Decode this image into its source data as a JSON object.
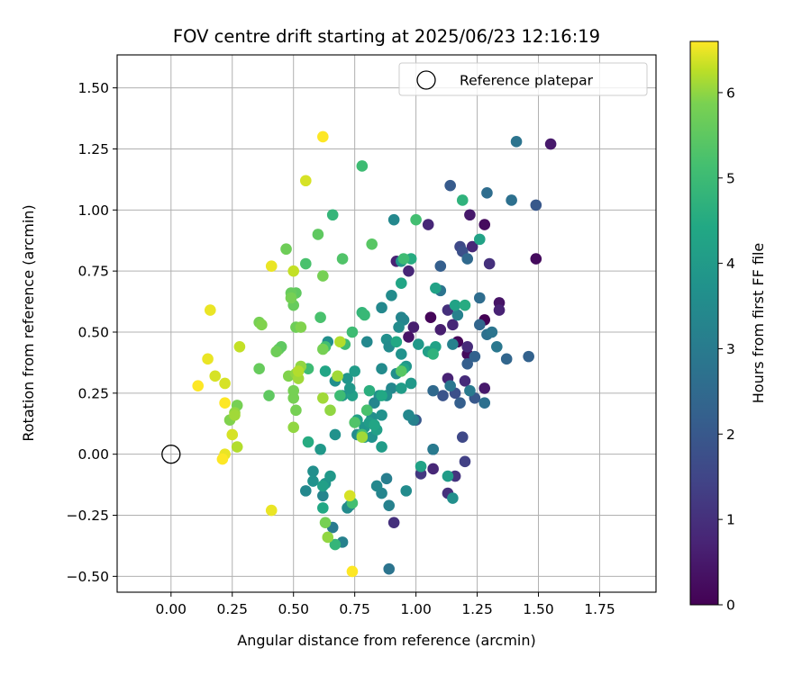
{
  "chart_data": {
    "type": "scatter",
    "title": "FOV centre drift starting at 2025/06/23 12:16:19",
    "xlabel": "Angular distance from reference (arcmin)",
    "ylabel": "Rotation from reference (arcmin)",
    "xlim": [
      -0.22,
      1.98
    ],
    "ylim": [
      -0.565,
      1.635
    ],
    "xticks": [
      0.0,
      0.25,
      0.5,
      0.75,
      1.0,
      1.25,
      1.5,
      1.75
    ],
    "xtick_labels": [
      "0.00",
      "0.25",
      "0.50",
      "0.75",
      "1.00",
      "1.25",
      "1.50",
      "1.75"
    ],
    "yticks": [
      -0.5,
      -0.25,
      0.0,
      0.25,
      0.5,
      0.75,
      1.0,
      1.25,
      1.5
    ],
    "ytick_labels": [
      "−0.50",
      "−0.25",
      "0.00",
      "0.25",
      "0.50",
      "0.75",
      "1.00",
      "1.25",
      "1.50"
    ],
    "grid": true,
    "legend": {
      "placement": "top-right",
      "entries": [
        "Reference platepar"
      ]
    },
    "reference_point": {
      "x": 0.0,
      "y": 0.0,
      "label": "Reference platepar"
    },
    "colorbar": {
      "label": "Hours from first FF file",
      "colormap": "viridis",
      "range": [
        0,
        6.6
      ],
      "ticks": [
        0,
        1,
        2,
        3,
        4,
        5,
        6
      ],
      "tick_labels": [
        "0",
        "1",
        "2",
        "3",
        "4",
        "5",
        "6"
      ]
    },
    "points": [
      {
        "x": 1.55,
        "y": 1.27,
        "h": 0.5
      },
      {
        "x": 1.49,
        "y": 0.8,
        "h": 0.2
      },
      {
        "x": 1.28,
        "y": 0.94,
        "h": 0.2
      },
      {
        "x": 1.28,
        "y": 0.55,
        "h": 0.0
      },
      {
        "x": 1.06,
        "y": 0.56,
        "h": 0.1
      },
      {
        "x": 1.21,
        "y": 0.41,
        "h": 0.2
      },
      {
        "x": 1.17,
        "y": 0.46,
        "h": 0.1
      },
      {
        "x": 1.28,
        "y": 0.27,
        "h": 0.5
      },
      {
        "x": 1.22,
        "y": 0.98,
        "h": 0.5
      },
      {
        "x": 1.23,
        "y": 0.85,
        "h": 0.8
      },
      {
        "x": 1.3,
        "y": 0.78,
        "h": 1.0
      },
      {
        "x": 1.34,
        "y": 0.62,
        "h": 0.4
      },
      {
        "x": 1.34,
        "y": 0.59,
        "h": 0.7
      },
      {
        "x": 0.97,
        "y": 0.75,
        "h": 0.8
      },
      {
        "x": 0.92,
        "y": 0.79,
        "h": 0.7
      },
      {
        "x": 1.05,
        "y": 0.94,
        "h": 0.8
      },
      {
        "x": 0.99,
        "y": 0.52,
        "h": 0.6
      },
      {
        "x": 0.97,
        "y": 0.48,
        "h": 0.4
      },
      {
        "x": 1.1,
        "y": 0.51,
        "h": 0.6
      },
      {
        "x": 1.15,
        "y": 0.53,
        "h": 0.8
      },
      {
        "x": 1.13,
        "y": 0.59,
        "h": 1.0
      },
      {
        "x": 1.21,
        "y": 0.44,
        "h": 0.9
      },
      {
        "x": 1.13,
        "y": 0.31,
        "h": 0.7
      },
      {
        "x": 1.2,
        "y": 0.3,
        "h": 0.9
      },
      {
        "x": 1.13,
        "y": -0.16,
        "h": 1.0
      },
      {
        "x": 1.16,
        "y": -0.09,
        "h": 1.1
      },
      {
        "x": 1.07,
        "y": -0.06,
        "h": 0.8
      },
      {
        "x": 0.91,
        "y": -0.28,
        "h": 1.0
      },
      {
        "x": 1.02,
        "y": -0.08,
        "h": 1.2
      },
      {
        "x": 1.2,
        "y": -0.03,
        "h": 1.4
      },
      {
        "x": 1.19,
        "y": 0.07,
        "h": 1.6
      },
      {
        "x": 1.07,
        "y": 0.02,
        "h": 1.8
      },
      {
        "x": 1.49,
        "y": 1.02,
        "h": 2.0
      },
      {
        "x": 1.18,
        "y": 0.85,
        "h": 1.6
      },
      {
        "x": 1.19,
        "y": 0.83,
        "h": 1.8
      },
      {
        "x": 1.14,
        "y": 1.1,
        "h": 2.1
      },
      {
        "x": 1.1,
        "y": 0.77,
        "h": 2.2
      },
      {
        "x": 1.21,
        "y": 0.8,
        "h": 2.5
      },
      {
        "x": 1.29,
        "y": 1.07,
        "h": 2.6
      },
      {
        "x": 1.41,
        "y": 1.28,
        "h": 2.8
      },
      {
        "x": 1.39,
        "y": 1.04,
        "h": 2.7
      },
      {
        "x": 1.46,
        "y": 0.4,
        "h": 2.3
      },
      {
        "x": 1.37,
        "y": 0.39,
        "h": 2.4
      },
      {
        "x": 1.21,
        "y": 0.37,
        "h": 2.2
      },
      {
        "x": 1.24,
        "y": 0.4,
        "h": 2.3
      },
      {
        "x": 1.18,
        "y": 0.21,
        "h": 2.2
      },
      {
        "x": 1.24,
        "y": 0.23,
        "h": 2.0
      },
      {
        "x": 1.16,
        "y": 0.25,
        "h": 1.8
      },
      {
        "x": 1.11,
        "y": 0.24,
        "h": 1.9
      },
      {
        "x": 1.0,
        "y": 0.14,
        "h": 2.0
      },
      {
        "x": 1.07,
        "y": 0.26,
        "h": 2.5
      },
      {
        "x": 1.26,
        "y": 0.53,
        "h": 2.4
      },
      {
        "x": 1.26,
        "y": 0.64,
        "h": 2.6
      },
      {
        "x": 1.29,
        "y": 0.49,
        "h": 2.7
      },
      {
        "x": 1.33,
        "y": 0.44,
        "h": 2.9
      },
      {
        "x": 1.31,
        "y": 0.5,
        "h": 2.8
      },
      {
        "x": 1.28,
        "y": 0.21,
        "h": 2.7
      },
      {
        "x": 1.22,
        "y": 0.26,
        "h": 3.0
      },
      {
        "x": 1.14,
        "y": 0.28,
        "h": 2.9
      },
      {
        "x": 1.1,
        "y": 0.67,
        "h": 2.8
      },
      {
        "x": 1.17,
        "y": 0.57,
        "h": 3.2
      },
      {
        "x": 1.15,
        "y": 0.45,
        "h": 3.2
      },
      {
        "x": 1.07,
        "y": 0.02,
        "h": 3.0
      },
      {
        "x": 0.99,
        "y": 0.14,
        "h": 3.2
      },
      {
        "x": 0.97,
        "y": 0.16,
        "h": 3.4
      },
      {
        "x": 0.89,
        "y": -0.47,
        "h": 2.8
      },
      {
        "x": 0.89,
        "y": -0.21,
        "h": 3.2
      },
      {
        "x": 0.88,
        "y": -0.1,
        "h": 3.1
      },
      {
        "x": 0.86,
        "y": -0.16,
        "h": 3.3
      },
      {
        "x": 0.84,
        "y": -0.13,
        "h": 3.4
      },
      {
        "x": 0.96,
        "y": -0.15,
        "h": 3.5
      },
      {
        "x": 0.7,
        "y": -0.36,
        "h": 3.2
      },
      {
        "x": 0.66,
        "y": -0.3,
        "h": 3.0
      },
      {
        "x": 0.73,
        "y": -0.21,
        "h": 3.3
      },
      {
        "x": 0.72,
        "y": -0.22,
        "h": 3.5
      },
      {
        "x": 0.62,
        "y": -0.17,
        "h": 3.3
      },
      {
        "x": 0.58,
        "y": -0.07,
        "h": 3.6
      },
      {
        "x": 0.55,
        "y": -0.15,
        "h": 3.4
      },
      {
        "x": 0.58,
        "y": -0.11,
        "h": 3.7
      },
      {
        "x": 0.63,
        "y": -0.12,
        "h": 3.8
      },
      {
        "x": 0.65,
        "y": -0.09,
        "h": 3.9
      },
      {
        "x": 1.15,
        "y": -0.18,
        "h": 3.6
      },
      {
        "x": 1.13,
        "y": -0.09,
        "h": 4.0
      },
      {
        "x": 1.02,
        "y": -0.05,
        "h": 4.2
      },
      {
        "x": 0.91,
        "y": 0.96,
        "h": 3.4
      },
      {
        "x": 0.94,
        "y": 0.79,
        "h": 3.8
      },
      {
        "x": 0.9,
        "y": 0.65,
        "h": 3.5
      },
      {
        "x": 0.86,
        "y": 0.6,
        "h": 3.4
      },
      {
        "x": 0.95,
        "y": 0.55,
        "h": 3.3
      },
      {
        "x": 0.94,
        "y": 0.56,
        "h": 3.3
      },
      {
        "x": 0.93,
        "y": 0.52,
        "h": 3.5
      },
      {
        "x": 0.88,
        "y": 0.47,
        "h": 3.6
      },
      {
        "x": 0.89,
        "y": 0.44,
        "h": 3.5
      },
      {
        "x": 0.8,
        "y": 0.46,
        "h": 3.4
      },
      {
        "x": 0.94,
        "y": 0.41,
        "h": 3.7
      },
      {
        "x": 0.96,
        "y": 0.36,
        "h": 3.8
      },
      {
        "x": 0.92,
        "y": 0.33,
        "h": 3.6
      },
      {
        "x": 0.86,
        "y": 0.35,
        "h": 3.5
      },
      {
        "x": 0.9,
        "y": 0.27,
        "h": 3.4
      },
      {
        "x": 0.85,
        "y": 0.24,
        "h": 3.6
      },
      {
        "x": 0.88,
        "y": 0.24,
        "h": 3.6
      },
      {
        "x": 0.83,
        "y": 0.21,
        "h": 3.3
      },
      {
        "x": 0.8,
        "y": 0.18,
        "h": 3.4
      },
      {
        "x": 0.82,
        "y": 0.15,
        "h": 3.6
      },
      {
        "x": 0.86,
        "y": 0.16,
        "h": 3.7
      },
      {
        "x": 0.79,
        "y": 0.11,
        "h": 3.8
      },
      {
        "x": 0.76,
        "y": 0.08,
        "h": 3.5
      },
      {
        "x": 0.79,
        "y": 0.07,
        "h": 3.9
      },
      {
        "x": 0.82,
        "y": 0.07,
        "h": 3.7
      },
      {
        "x": 0.86,
        "y": 0.03,
        "h": 4.0
      },
      {
        "x": 0.67,
        "y": 0.08,
        "h": 3.7
      },
      {
        "x": 0.61,
        "y": 0.02,
        "h": 3.9
      },
      {
        "x": 0.64,
        "y": 0.46,
        "h": 3.6
      },
      {
        "x": 0.67,
        "y": 0.3,
        "h": 3.6
      },
      {
        "x": 0.7,
        "y": 0.24,
        "h": 3.8
      },
      {
        "x": 0.72,
        "y": 0.31,
        "h": 3.8
      },
      {
        "x": 0.75,
        "y": 0.34,
        "h": 4.0
      },
      {
        "x": 0.74,
        "y": 0.24,
        "h": 4.1
      },
      {
        "x": 0.73,
        "y": 0.27,
        "h": 3.9
      },
      {
        "x": 0.76,
        "y": 0.14,
        "h": 4.1
      },
      {
        "x": 0.81,
        "y": 0.13,
        "h": 4.0
      },
      {
        "x": 0.84,
        "y": 0.1,
        "h": 4.1
      },
      {
        "x": 0.94,
        "y": 0.27,
        "h": 4.0
      },
      {
        "x": 0.98,
        "y": 0.29,
        "h": 3.9
      },
      {
        "x": 1.01,
        "y": 0.45,
        "h": 3.9
      },
      {
        "x": 1.05,
        "y": 0.42,
        "h": 4.1
      },
      {
        "x": 1.08,
        "y": 0.44,
        "h": 4.2
      },
      {
        "x": 1.08,
        "y": 0.68,
        "h": 4.2
      },
      {
        "x": 1.16,
        "y": 0.61,
        "h": 4.2
      },
      {
        "x": 1.26,
        "y": 0.88,
        "h": 4.2
      },
      {
        "x": 0.94,
        "y": 0.7,
        "h": 4.3
      },
      {
        "x": 0.92,
        "y": 0.46,
        "h": 4.4
      },
      {
        "x": 0.95,
        "y": 0.35,
        "h": 4.3
      },
      {
        "x": 0.86,
        "y": 0.24,
        "h": 4.4
      },
      {
        "x": 0.83,
        "y": 0.12,
        "h": 4.3
      },
      {
        "x": 0.98,
        "y": 0.8,
        "h": 4.5
      },
      {
        "x": 0.81,
        "y": 0.26,
        "h": 4.6
      },
      {
        "x": 1.2,
        "y": 0.61,
        "h": 4.5
      },
      {
        "x": 1.19,
        "y": 1.04,
        "h": 4.7
      },
      {
        "x": 1.07,
        "y": 0.41,
        "h": 4.7
      },
      {
        "x": 0.63,
        "y": 0.34,
        "h": 4.3
      },
      {
        "x": 0.62,
        "y": -0.22,
        "h": 4.4
      },
      {
        "x": 0.62,
        "y": -0.13,
        "h": 4.1
      },
      {
        "x": 0.56,
        "y": 0.05,
        "h": 4.5
      },
      {
        "x": 0.66,
        "y": 0.98,
        "h": 4.8
      },
      {
        "x": 0.78,
        "y": 1.18,
        "h": 5.0
      },
      {
        "x": 1.0,
        "y": 0.96,
        "h": 5.1
      },
      {
        "x": 0.95,
        "y": 0.8,
        "h": 5.0
      },
      {
        "x": 0.78,
        "y": 0.58,
        "h": 4.8
      },
      {
        "x": 0.79,
        "y": 0.57,
        "h": 4.9
      },
      {
        "x": 0.74,
        "y": 0.5,
        "h": 5.0
      },
      {
        "x": 0.71,
        "y": 0.45,
        "h": 5.0
      },
      {
        "x": 0.69,
        "y": 0.24,
        "h": 5.0
      },
      {
        "x": 0.63,
        "y": 0.44,
        "h": 5.1
      },
      {
        "x": 0.56,
        "y": 0.35,
        "h": 5.0
      },
      {
        "x": 0.61,
        "y": 0.56,
        "h": 5.2
      },
      {
        "x": 0.55,
        "y": 0.78,
        "h": 5.2
      },
      {
        "x": 0.7,
        "y": 0.8,
        "h": 5.3
      },
      {
        "x": 0.82,
        "y": 0.86,
        "h": 5.4
      },
      {
        "x": 0.67,
        "y": -0.37,
        "h": 4.8
      },
      {
        "x": 0.74,
        "y": -0.2,
        "h": 5.1
      },
      {
        "x": 0.78,
        "y": 0.08,
        "h": 5.1
      },
      {
        "x": 0.8,
        "y": 0.18,
        "h": 5.2
      },
      {
        "x": 0.75,
        "y": 0.13,
        "h": 5.3
      },
      {
        "x": 0.94,
        "y": 0.34,
        "h": 5.4
      },
      {
        "x": 0.6,
        "y": 0.9,
        "h": 5.5
      },
      {
        "x": 0.51,
        "y": 0.66,
        "h": 5.5
      },
      {
        "x": 0.49,
        "y": 0.66,
        "h": 5.6
      },
      {
        "x": 0.47,
        "y": 0.84,
        "h": 5.7
      },
      {
        "x": 0.5,
        "y": 0.61,
        "h": 5.6
      },
      {
        "x": 0.49,
        "y": 0.64,
        "h": 5.8
      },
      {
        "x": 0.51,
        "y": 0.52,
        "h": 5.7
      },
      {
        "x": 0.53,
        "y": 0.52,
        "h": 5.9
      },
      {
        "x": 0.62,
        "y": 0.73,
        "h": 5.8
      },
      {
        "x": 0.62,
        "y": 0.43,
        "h": 5.8
      },
      {
        "x": 0.44,
        "y": 0.43,
        "h": 5.6
      },
      {
        "x": 0.45,
        "y": 0.44,
        "h": 5.5
      },
      {
        "x": 0.43,
        "y": 0.42,
        "h": 5.7
      },
      {
        "x": 0.36,
        "y": 0.54,
        "h": 5.8
      },
      {
        "x": 0.37,
        "y": 0.53,
        "h": 5.9
      },
      {
        "x": 0.36,
        "y": 0.35,
        "h": 5.6
      },
      {
        "x": 0.4,
        "y": 0.24,
        "h": 5.5
      },
      {
        "x": 0.48,
        "y": 0.32,
        "h": 5.9
      },
      {
        "x": 0.5,
        "y": 0.26,
        "h": 5.8
      },
      {
        "x": 0.5,
        "y": 0.23,
        "h": 5.8
      },
      {
        "x": 0.51,
        "y": 0.18,
        "h": 5.8
      },
      {
        "x": 0.5,
        "y": 0.11,
        "h": 6.0
      },
      {
        "x": 0.51,
        "y": 0.33,
        "h": 6.0
      },
      {
        "x": 0.53,
        "y": 0.36,
        "h": 6.0
      },
      {
        "x": 0.52,
        "y": 0.31,
        "h": 6.1
      },
      {
        "x": 0.52,
        "y": 0.34,
        "h": 6.2
      },
      {
        "x": 0.62,
        "y": 0.23,
        "h": 6.1
      },
      {
        "x": 0.65,
        "y": 0.18,
        "h": 6.0
      },
      {
        "x": 0.68,
        "y": 0.32,
        "h": 6.1
      },
      {
        "x": 0.69,
        "y": 0.46,
        "h": 6.2
      },
      {
        "x": 0.78,
        "y": 0.07,
        "h": 6.1
      },
      {
        "x": 0.5,
        "y": 0.75,
        "h": 6.3
      },
      {
        "x": 0.41,
        "y": 0.77,
        "h": 6.5
      },
      {
        "x": 0.55,
        "y": 1.12,
        "h": 6.4
      },
      {
        "x": 0.62,
        "y": 1.3,
        "h": 6.6
      },
      {
        "x": 0.63,
        "y": -0.28,
        "h": 5.8
      },
      {
        "x": 0.64,
        "y": -0.34,
        "h": 6.0
      },
      {
        "x": 0.73,
        "y": -0.17,
        "h": 6.4
      },
      {
        "x": 0.74,
        "y": -0.48,
        "h": 6.6
      },
      {
        "x": 0.41,
        "y": -0.23,
        "h": 6.5
      },
      {
        "x": 0.27,
        "y": 0.2,
        "h": 5.8
      },
      {
        "x": 0.24,
        "y": 0.14,
        "h": 5.9
      },
      {
        "x": 0.26,
        "y": 0.17,
        "h": 6.0
      },
      {
        "x": 0.26,
        "y": 0.16,
        "h": 6.1
      },
      {
        "x": 0.27,
        "y": 0.03,
        "h": 6.2
      },
      {
        "x": 0.28,
        "y": 0.44,
        "h": 6.3
      },
      {
        "x": 0.22,
        "y": 0.29,
        "h": 6.4
      },
      {
        "x": 0.18,
        "y": 0.32,
        "h": 6.4
      },
      {
        "x": 0.16,
        "y": 0.59,
        "h": 6.5
      },
      {
        "x": 0.15,
        "y": 0.39,
        "h": 6.5
      },
      {
        "x": 0.11,
        "y": 0.28,
        "h": 6.6
      },
      {
        "x": 0.22,
        "y": 0.21,
        "h": 6.6
      },
      {
        "x": 0.25,
        "y": 0.08,
        "h": 6.4
      },
      {
        "x": 0.22,
        "y": 0.0,
        "h": 6.5
      },
      {
        "x": 0.21,
        "y": -0.02,
        "h": 6.6
      }
    ]
  }
}
